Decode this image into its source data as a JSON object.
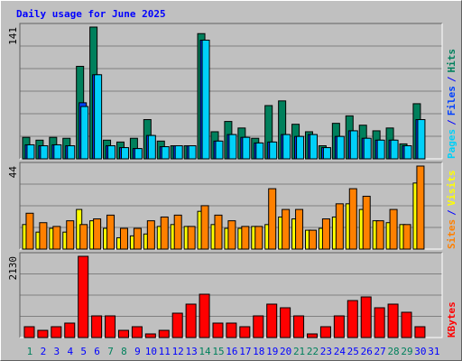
{
  "title": "Daily usage for June 2025",
  "categories": [
    "1",
    "2",
    "3",
    "4",
    "5",
    "6",
    "7",
    "8",
    "9",
    "10",
    "11",
    "12",
    "13",
    "14",
    "15",
    "16",
    "17",
    "18",
    "19",
    "20",
    "21",
    "22",
    "23",
    "24",
    "25",
    "26",
    "27",
    "28",
    "29",
    "30",
    "31"
  ],
  "category_colors": [
    "#00805c",
    "#0000ff",
    "#0000ff",
    "#0000ff",
    "#0000ff",
    "#0000ff",
    "#00805c",
    "#00805c",
    "#0000ff",
    "#0000ff",
    "#0000ff",
    "#0000ff",
    "#0000ff",
    "#00805c",
    "#00805c",
    "#0000ff",
    "#0000ff",
    "#0000ff",
    "#0000ff",
    "#0000ff",
    "#00805c",
    "#00805c",
    "#0000ff",
    "#0000ff",
    "#0000ff",
    "#0000ff",
    "#0000ff",
    "#00805c",
    "#00805c",
    "#0000ff",
    "#0000ff"
  ],
  "legend_separator": "/",
  "chart_data": [
    {
      "type": "bar",
      "ylim": [
        0,
        141
      ],
      "yticks": [
        141
      ],
      "series": [
        {
          "name": "Hits",
          "color": "#00805c",
          "values": [
            23,
            20,
            23,
            22,
            99,
            141,
            20,
            18,
            22,
            42,
            19,
            14,
            14,
            134,
            29,
            40,
            33,
            22,
            57,
            62,
            37,
            29,
            14,
            38,
            46,
            36,
            30,
            33,
            16,
            59,
            0
          ]
        },
        {
          "name": "Files",
          "color": "#0040ff",
          "values": [
            15,
            14,
            15,
            14,
            60,
            90,
            14,
            12,
            11,
            25,
            13,
            14,
            14,
            127,
            19,
            26,
            23,
            17,
            18,
            26,
            24,
            26,
            12,
            24,
            30,
            22,
            20,
            20,
            14,
            42,
            0
          ]
        },
        {
          "name": "Pages",
          "color": "#00d0f8",
          "values": [
            15,
            14,
            15,
            14,
            56,
            90,
            14,
            12,
            11,
            25,
            13,
            14,
            14,
            127,
            19,
            26,
            23,
            17,
            18,
            26,
            24,
            26,
            12,
            24,
            30,
            22,
            20,
            20,
            14,
            42,
            0
          ]
        }
      ]
    },
    {
      "type": "bar",
      "ylim": [
        0,
        44
      ],
      "yticks": [
        44
      ],
      "series": [
        {
          "name": "Visits",
          "color": "#ffff00",
          "values": [
            13,
            9,
            11,
            9,
            21,
            15,
            11,
            6,
            7,
            8,
            12,
            13,
            12,
            20,
            13,
            11,
            11,
            12,
            13,
            17,
            16,
            10,
            11,
            17,
            24,
            21,
            15,
            14,
            13,
            35,
            0
          ]
        },
        {
          "name": "Sites",
          "color": "#ff8000",
          "values": [
            19,
            14,
            12,
            15,
            13,
            16,
            18,
            11,
            11,
            15,
            17,
            18,
            12,
            23,
            18,
            15,
            12,
            12,
            32,
            21,
            21,
            10,
            16,
            24,
            32,
            28,
            15,
            21,
            13,
            44,
            0
          ]
        }
      ]
    },
    {
      "type": "bar",
      "ylim": [
        0,
        2130
      ],
      "yticks": [
        2130
      ],
      "series": [
        {
          "name": "KBytes",
          "color": "#ff0000",
          "values": [
            284,
            189,
            284,
            379,
            2130,
            568,
            568,
            189,
            284,
            95,
            189,
            639,
            876,
            1136,
            379,
            379,
            284,
            568,
            876,
            781,
            568,
            95,
            284,
            568,
            970,
            1065,
            781,
            876,
            663,
            284,
            0
          ]
        }
      ]
    }
  ]
}
